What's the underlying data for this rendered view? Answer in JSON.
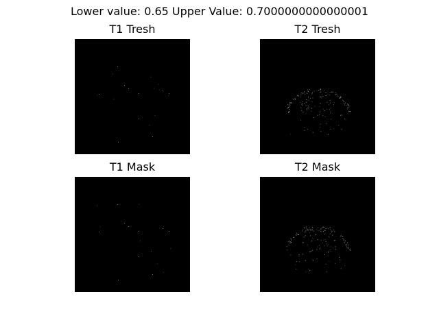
{
  "figure": {
    "suptitle": "Lower value: 0.65 Upper Value: 0.7000000000000001"
  },
  "panels": [
    {
      "title": "T1 Tresh",
      "content": "sparse-speckle"
    },
    {
      "title": "T2 Tresh",
      "content": "dense-speckle"
    },
    {
      "title": "T1 Mask",
      "content": "sparse-speckle"
    },
    {
      "title": "T2 Mask",
      "content": "dense-speckle"
    }
  ],
  "colors": {
    "image_background": "#000000",
    "speckle": "#b8b8b8",
    "page_background": "#ffffff"
  }
}
